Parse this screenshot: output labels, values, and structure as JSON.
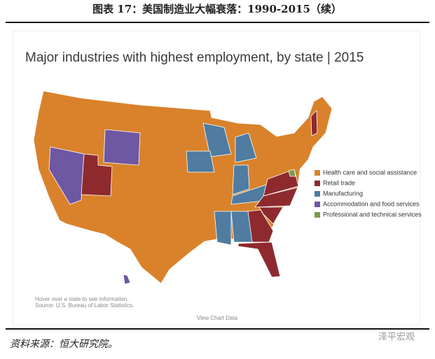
{
  "header": {
    "title": "图表 17：美国制造业大幅衰落：1990-2015（续）"
  },
  "map": {
    "title": "Major industries with highest employment, by state | 2015",
    "legend": [
      {
        "label": "Health care and social assistance",
        "color": "#d9822b"
      },
      {
        "label": "Retail trade",
        "color": "#8e2a2e"
      },
      {
        "label": "Manufacturing",
        "color": "#4f7ca0"
      },
      {
        "label": "Accommodation and food services",
        "color": "#6e57a3"
      },
      {
        "label": "Professional and technical services",
        "color": "#7d9a4a"
      }
    ],
    "notes": [
      "Hover over a state to see information.",
      "Source: U.S. Bureau of Labor Statistics."
    ],
    "link": "View Chart Data"
  },
  "footer": {
    "source": "资料来源：恒大研究院。",
    "watermark": "泽平宏观"
  }
}
